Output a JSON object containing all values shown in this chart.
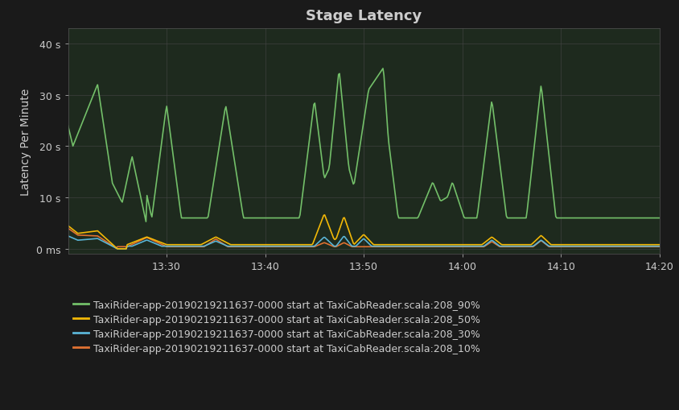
{
  "title": "Stage Latency",
  "ylabel": "Latency Per Minute",
  "background_color": "#1a1a1a",
  "plot_bg_color": "#1e2a1e",
  "grid_color": "#444444",
  "text_color": "#cccccc",
  "title_fontsize": 13,
  "label_fontsize": 10,
  "tick_fontsize": 9,
  "legend_fontsize": 9,
  "yticks": [
    0,
    10,
    20,
    30,
    40
  ],
  "ytick_labels": [
    "0 ms",
    "10 s",
    "20 s",
    "30 s",
    "40 s"
  ],
  "ylim": [
    -1,
    43
  ],
  "xlim": [
    0,
    60
  ],
  "series": {
    "p90": {
      "color": "#73bf69",
      "label": "TaxiRider-app-20190219211637-0000 start at TaxiCabReader.scala:208_90%",
      "linewidth": 1.2
    },
    "p50": {
      "color": "#f2b807",
      "label": "TaxiRider-app-20190219211637-0000 start at TaxiCabReader.scala:208_50%",
      "linewidth": 1.2
    },
    "p30": {
      "color": "#5ab4d6",
      "label": "TaxiRider-app-20190219211637-0000 start at TaxiCabReader.scala:208_30%",
      "linewidth": 1.2
    },
    "p10": {
      "color": "#e07232",
      "label": "TaxiRider-app-20190219211637-0000 start at TaxiCabReader.scala:208_10%",
      "linewidth": 1.2
    }
  },
  "x_tick_positions": [
    10,
    20,
    30,
    40,
    50,
    60
  ],
  "x_tick_labels": [
    "13:30",
    "13:40",
    "13:50",
    "14:00",
    "14:10",
    "14:20"
  ]
}
